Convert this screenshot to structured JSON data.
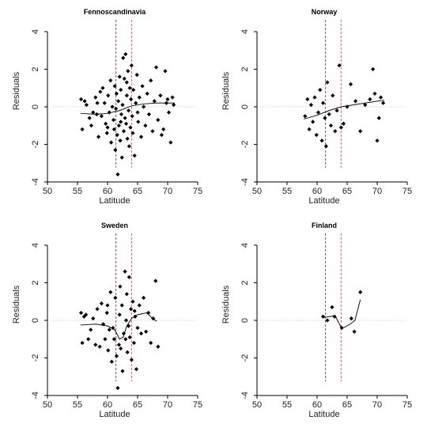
{
  "chart_data": [
    {
      "type": "scatter",
      "title": "Fennoscandinavia",
      "xlabel": "Latitude",
      "ylabel": "Residuals",
      "xlim": [
        50,
        75
      ],
      "ylim": [
        -4,
        4
      ],
      "xticks": [
        50,
        55,
        60,
        65,
        70,
        75
      ],
      "yticks": [
        -4,
        -2,
        0,
        2,
        4
      ],
      "reference_lines": {
        "vertical_dashed": [
          61.4,
          64.0
        ],
        "horizontal_dotted": 0
      },
      "points": [
        [
          55.6,
          0.4
        ],
        [
          55.8,
          -1.2
        ],
        [
          56.2,
          0.3
        ],
        [
          56.5,
          0.1
        ],
        [
          57.0,
          -0.6
        ],
        [
          57.3,
          -1.0
        ],
        [
          57.6,
          -0.3
        ],
        [
          58.0,
          0.5
        ],
        [
          58.2,
          -0.4
        ],
        [
          58.5,
          -1.6
        ],
        [
          58.8,
          0.8
        ],
        [
          59.0,
          -0.5
        ],
        [
          59.2,
          1.0
        ],
        [
          59.5,
          0.2
        ],
        [
          59.7,
          -0.9
        ],
        [
          59.9,
          -1.4
        ],
        [
          60.1,
          0.6
        ],
        [
          60.3,
          -0.3
        ],
        [
          60.5,
          1.4
        ],
        [
          60.6,
          -1.9
        ],
        [
          60.8,
          0.0
        ],
        [
          61.0,
          -0.7
        ],
        [
          61.1,
          -1.2
        ],
        [
          61.2,
          1.1
        ],
        [
          61.3,
          -2.3
        ],
        [
          61.4,
          -0.1
        ],
        [
          61.5,
          0.7
        ],
        [
          61.6,
          -1.5
        ],
        [
          61.7,
          -3.6
        ],
        [
          61.8,
          0.3
        ],
        [
          61.9,
          -1.0
        ],
        [
          62.0,
          1.6
        ],
        [
          62.1,
          -1.8
        ],
        [
          62.2,
          0.9
        ],
        [
          62.3,
          -0.4
        ],
        [
          62.4,
          -2.7
        ],
        [
          62.5,
          0.1
        ],
        [
          62.6,
          2.6
        ],
        [
          62.7,
          -1.3
        ],
        [
          62.8,
          1.5
        ],
        [
          62.9,
          -0.6
        ],
        [
          63.0,
          2.8
        ],
        [
          63.1,
          -0.9
        ],
        [
          63.2,
          0.6
        ],
        [
          63.3,
          -1.7
        ],
        [
          63.4,
          1.9
        ],
        [
          63.5,
          -0.2
        ],
        [
          63.6,
          -2.1
        ],
        [
          63.7,
          1.0
        ],
        [
          63.8,
          -1.1
        ],
        [
          63.9,
          0.4
        ],
        [
          64.0,
          2.2
        ],
        [
          64.1,
          -0.5
        ],
        [
          64.2,
          -1.4
        ],
        [
          64.3,
          0.9
        ],
        [
          64.5,
          -2.6
        ],
        [
          64.7,
          0.2
        ],
        [
          64.9,
          1.7
        ],
        [
          65.1,
          -0.8
        ],
        [
          65.3,
          0.5
        ],
        [
          65.6,
          -1.6
        ],
        [
          65.8,
          1.1
        ],
        [
          66.0,
          0.0
        ],
        [
          66.3,
          -1.0
        ],
        [
          66.6,
          0.7
        ],
        [
          66.9,
          -0.4
        ],
        [
          67.2,
          1.4
        ],
        [
          67.5,
          -1.3
        ],
        [
          67.8,
          0.3
        ],
        [
          68.1,
          2.1
        ],
        [
          68.4,
          -0.7
        ],
        [
          68.8,
          0.6
        ],
        [
          69.0,
          -1.5
        ],
        [
          69.3,
          -1.2
        ],
        [
          69.6,
          1.9
        ],
        [
          69.8,
          0.2
        ],
        [
          70.0,
          0.4
        ],
        [
          70.2,
          -0.3
        ],
        [
          70.5,
          -1.9
        ],
        [
          70.8,
          0.5
        ],
        [
          71.0,
          0.1
        ],
        [
          58.3,
          0.2
        ],
        [
          60.0,
          -1.1
        ],
        [
          62.2,
          -0.8
        ],
        [
          63.2,
          1.3
        ],
        [
          65.0,
          -0.3
        ]
      ],
      "smooth_line": [
        [
          55.5,
          -0.35
        ],
        [
          58,
          -0.4
        ],
        [
          60,
          -0.35
        ],
        [
          62,
          -0.2
        ],
        [
          64,
          0.05
        ],
        [
          66,
          0.15
        ],
        [
          68,
          0.2
        ],
        [
          70,
          0.2
        ],
        [
          71.2,
          0.2
        ]
      ]
    },
    {
      "type": "scatter",
      "title": "Norway",
      "xlabel": "Latitude",
      "ylabel": "Residuals",
      "xlim": [
        50,
        75
      ],
      "ylim": [
        -4,
        4
      ],
      "xticks": [
        50,
        55,
        60,
        65,
        70,
        75
      ],
      "yticks": [
        -4,
        -2,
        0,
        2,
        4
      ],
      "reference_lines": {
        "vertical_dashed": [
          61.4,
          64.0
        ],
        "horizontal_dotted": 0
      },
      "points": [
        [
          58.0,
          -0.5
        ],
        [
          58.4,
          0.4
        ],
        [
          58.7,
          -1.2
        ],
        [
          59.0,
          0.1
        ],
        [
          59.3,
          -0.8
        ],
        [
          59.6,
          0.5
        ],
        [
          59.9,
          -1.5
        ],
        [
          60.2,
          -0.3
        ],
        [
          60.5,
          0.9
        ],
        [
          60.8,
          -1.8
        ],
        [
          61.0,
          0.2
        ],
        [
          61.3,
          -0.6
        ],
        [
          61.5,
          -2.1
        ],
        [
          61.7,
          1.3
        ],
        [
          62.0,
          -0.4
        ],
        [
          62.3,
          -1.0
        ],
        [
          62.6,
          0.6
        ],
        [
          63.0,
          -1.3
        ],
        [
          63.3,
          -0.2
        ],
        [
          63.7,
          2.2
        ],
        [
          64.0,
          -1.1
        ],
        [
          64.4,
          -0.9
        ],
        [
          65.0,
          0.0
        ],
        [
          65.6,
          1.2
        ],
        [
          66.4,
          0.3
        ],
        [
          67.2,
          -1.3
        ],
        [
          68.0,
          0.1
        ],
        [
          68.8,
          0.4
        ],
        [
          69.3,
          2.0
        ],
        [
          69.6,
          0.7
        ],
        [
          70.0,
          -1.8
        ],
        [
          70.3,
          -0.6
        ],
        [
          70.6,
          0.5
        ],
        [
          71.0,
          0.2
        ]
      ],
      "smooth_line": [
        [
          57.8,
          -0.65
        ],
        [
          60,
          -0.45
        ],
        [
          62,
          -0.2
        ],
        [
          64,
          0.0
        ],
        [
          66,
          0.1
        ],
        [
          68,
          0.2
        ],
        [
          70,
          0.3
        ],
        [
          71.2,
          0.35
        ]
      ]
    },
    {
      "type": "scatter",
      "title": "Sweden",
      "xlabel": "Latitude",
      "ylabel": "Residuals",
      "xlim": [
        50,
        75
      ],
      "ylim": [
        -4,
        4
      ],
      "xticks": [
        50,
        55,
        60,
        65,
        70,
        75
      ],
      "yticks": [
        -4,
        -2,
        0,
        2,
        4
      ],
      "reference_lines": {
        "vertical_dashed": [
          61.4,
          64.0
        ],
        "horizontal_dotted": 0
      },
      "points": [
        [
          55.6,
          0.4
        ],
        [
          55.8,
          -1.2
        ],
        [
          56.1,
          0.2
        ],
        [
          56.4,
          0.3
        ],
        [
          56.8,
          -1.0
        ],
        [
          57.2,
          -0.5
        ],
        [
          57.6,
          0.1
        ],
        [
          58.0,
          -1.3
        ],
        [
          58.3,
          0.6
        ],
        [
          58.7,
          -1.4
        ],
        [
          59.0,
          0.9
        ],
        [
          59.3,
          -0.2
        ],
        [
          59.6,
          -1.0
        ],
        [
          59.9,
          0.4
        ],
        [
          60.1,
          -1.6
        ],
        [
          60.3,
          -0.5
        ],
        [
          60.5,
          1.5
        ],
        [
          60.7,
          -2.2
        ],
        [
          60.9,
          -0.4
        ],
        [
          61.1,
          -1.0
        ],
        [
          61.3,
          1.2
        ],
        [
          61.5,
          -1.9
        ],
        [
          61.7,
          -3.6
        ],
        [
          61.9,
          -1.3
        ],
        [
          62.0,
          0.3
        ],
        [
          62.2,
          -1.5
        ],
        [
          62.4,
          0.8
        ],
        [
          62.5,
          -2.7
        ],
        [
          62.7,
          -0.7
        ],
        [
          62.9,
          2.6
        ],
        [
          63.0,
          -1.0
        ],
        [
          63.2,
          1.4
        ],
        [
          63.3,
          -1.7
        ],
        [
          63.5,
          -0.3
        ],
        [
          63.6,
          2.3
        ],
        [
          63.7,
          -0.9
        ],
        [
          63.9,
          0.6
        ],
        [
          64.0,
          -2.1
        ],
        [
          64.2,
          1.0
        ],
        [
          64.4,
          -1.2
        ],
        [
          64.6,
          0.2
        ],
        [
          64.8,
          -2.6
        ],
        [
          65.0,
          -0.4
        ],
        [
          65.3,
          0.8
        ],
        [
          65.6,
          -0.7
        ],
        [
          66.0,
          1.2
        ],
        [
          66.4,
          -0.6
        ],
        [
          66.8,
          0.4
        ],
        [
          67.2,
          -1.2
        ],
        [
          67.6,
          0.1
        ],
        [
          68.0,
          2.1
        ],
        [
          68.4,
          -1.4
        ],
        [
          62.1,
          1.8
        ],
        [
          63.1,
          0.0
        ],
        [
          60.0,
          0.8
        ],
        [
          64.5,
          0.5
        ]
      ],
      "smooth_line": [
        [
          55.5,
          -0.25
        ],
        [
          58,
          -0.2
        ],
        [
          60,
          -0.3
        ],
        [
          61.2,
          -0.5
        ],
        [
          62,
          -1.0
        ],
        [
          62.6,
          -0.9
        ],
        [
          63.2,
          -0.3
        ],
        [
          64,
          0.1
        ],
        [
          65,
          0.3
        ],
        [
          66.5,
          0.4
        ],
        [
          67.5,
          0.1
        ],
        [
          68.2,
          -0.05
        ]
      ]
    },
    {
      "type": "scatter",
      "title": "Finland",
      "xlabel": "Latitude",
      "ylabel": "Residuals",
      "xlim": [
        50,
        75
      ],
      "ylim": [
        -4,
        4
      ],
      "xticks": [
        50,
        55,
        60,
        65,
        70,
        75
      ],
      "yticks": [
        -4,
        -2,
        0,
        2,
        4
      ],
      "reference_lines": {
        "vertical_dashed": [
          61.4,
          64.0
        ],
        "horizontal_dotted": 0
      },
      "points": [
        [
          61.0,
          0.2
        ],
        [
          61.7,
          0.0
        ],
        [
          62.5,
          0.7
        ],
        [
          62.9,
          0.2
        ],
        [
          64.1,
          -0.4
        ],
        [
          65.7,
          0.1
        ],
        [
          66.2,
          -0.6
        ],
        [
          67.2,
          1.5
        ]
      ],
      "smooth_line": [
        [
          61.0,
          0.15
        ],
        [
          62,
          0.2
        ],
        [
          63,
          0.25
        ],
        [
          64.1,
          -0.45
        ],
        [
          65.5,
          -0.2
        ],
        [
          66.3,
          0.0
        ],
        [
          67.2,
          1.1
        ]
      ]
    }
  ]
}
